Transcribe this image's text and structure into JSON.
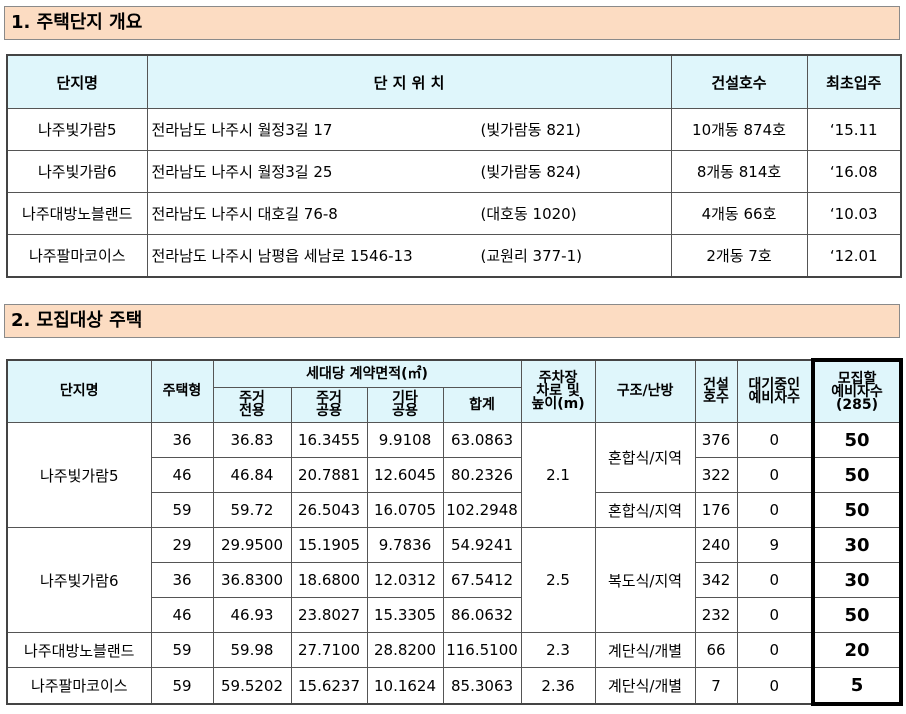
{
  "section1": {
    "title": "1. 주택단지 개요",
    "headers": {
      "name": "단지명",
      "location": "단 지 위 치",
      "units": "건설호수",
      "move_in": "최초입주"
    },
    "rows": [
      {
        "name": "나주빛가람5",
        "address": "전라남도 나주시 월정3길 17",
        "dong": "(빛가람동 821)",
        "units": "10개동 874호",
        "move_in": "‘15.11"
      },
      {
        "name": "나주빛가람6",
        "address": "전라남도 나주시 월정3길 25",
        "dong": "(빛가람동 824)",
        "units": "8개동 814호",
        "move_in": "‘16.08"
      },
      {
        "name": "나주대방노블랜드",
        "address": "전라남도 나주시 대호길 76-8",
        "dong": "(대호동 1020)",
        "units": "4개동 66호",
        "move_in": "‘10.03"
      },
      {
        "name": "나주팔마코이스",
        "address": "전라남도 나주시 남평읍 세남로 1546-13",
        "dong": "(교원리 377-1)",
        "units": "2개동 7호",
        "move_in": "‘12.01"
      }
    ]
  },
  "section2": {
    "title": "2. 모집대상 주택",
    "headers": {
      "name": "단지명",
      "type": "주택형",
      "area_group": "세대당 계약면적(㎡)",
      "private_a": "주거",
      "private_b": "전용",
      "common_a": "주거",
      "common_b": "공용",
      "other_a": "기타",
      "other_b": "공용",
      "total": "합계",
      "parking_a": "주차장",
      "parking_b": "차로 및",
      "parking_c": "높이(m)",
      "structure": "구조/난방",
      "built_a": "건설",
      "built_b": "호수",
      "waiting_a": "대기중인",
      "waiting_b": "예비자수",
      "reserve_a": "모집할",
      "reserve_b": "예비자수",
      "reserve_c": "(285)"
    },
    "complexes": [
      {
        "name": "나주빛가람5",
        "parking": "2.1",
        "rows": [
          {
            "type": "36",
            "private": "36.83",
            "common": "16.3455",
            "other": "9.9108",
            "total": "63.0863",
            "structure": "혼합식/지역",
            "built": "376",
            "waiting": "0",
            "reserve": "50"
          },
          {
            "type": "46",
            "private": "46.84",
            "common": "20.7881",
            "other": "12.6045",
            "total": "80.2326",
            "built": "322",
            "waiting": "0",
            "reserve": "50"
          },
          {
            "type": "59",
            "private": "59.72",
            "common": "26.5043",
            "other": "16.0705",
            "total": "102.2948",
            "structure": "혼합식/지역",
            "built": "176",
            "waiting": "0",
            "reserve": "50"
          }
        ]
      },
      {
        "name": "나주빛가람6",
        "parking": "2.5",
        "structure": "복도식/지역",
        "rows": [
          {
            "type": "29",
            "private": "29.9500",
            "common": "15.1905",
            "other": "9.7836",
            "total": "54.9241",
            "built": "240",
            "waiting": "9",
            "reserve": "30"
          },
          {
            "type": "36",
            "private": "36.8300",
            "common": "18.6800",
            "other": "12.0312",
            "total": "67.5412",
            "built": "342",
            "waiting": "0",
            "reserve": "30"
          },
          {
            "type": "46",
            "private": "46.93",
            "common": "23.8027",
            "other": "15.3305",
            "total": "86.0632",
            "built": "232",
            "waiting": "0",
            "reserve": "50"
          }
        ]
      },
      {
        "name": "나주대방노블랜드",
        "parking": "2.3",
        "structure": "계단식/개별",
        "rows": [
          {
            "type": "59",
            "private": "59.98",
            "common": "27.7100",
            "other": "28.8200",
            "total": "116.5100",
            "built": "66",
            "waiting": "0",
            "reserve": "20"
          }
        ]
      },
      {
        "name": "나주팔마코이스",
        "parking": "2.36",
        "structure": "계단식/개별",
        "rows": [
          {
            "type": "59",
            "private": "59.5202",
            "common": "15.6237",
            "other": "10.1624",
            "total": "85.3063",
            "built": "7",
            "waiting": "0",
            "reserve": "5"
          }
        ]
      }
    ]
  }
}
